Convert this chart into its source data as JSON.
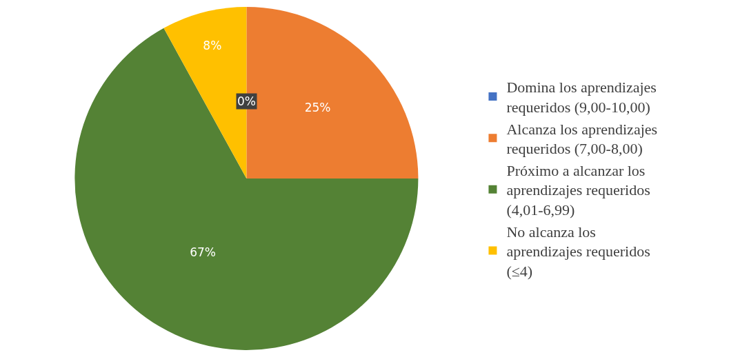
{
  "chart_data": {
    "type": "pie",
    "categories": [
      "Domina los aprendizajes requeridos (9,00-10,00)",
      "Alcanza los aprendizajes requeridos (7,00-8,00)",
      "Próximo a alcanzar los aprendizajes requeridos (4,01-6,99)",
      "No alcanza los aprendizajes requeridos (≤4)"
    ],
    "values": [
      0,
      25,
      67,
      8
    ],
    "value_labels": [
      "0%",
      "25%",
      "67%",
      "8%"
    ],
    "colors": [
      "#4472c4",
      "#ed7d31",
      "#548235",
      "#ffc000"
    ],
    "legend": "right"
  }
}
